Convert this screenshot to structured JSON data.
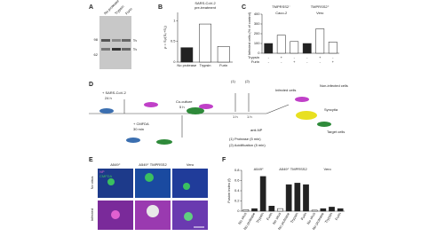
{
  "panels": [
    "A",
    "B",
    "C",
    "D",
    "E",
    "F"
  ],
  "gel": {
    "lanes": [
      "No protease",
      "Trypsin",
      "Furin"
    ],
    "markers": [
      "98",
      "62"
    ],
    "bands": [
      "S₀",
      "S₂"
    ]
  },
  "diagram": {
    "labels": [
      "+ SARS-CoV-2",
      "24 h",
      "+ CMFDA",
      "30 min",
      "Co-culture",
      "5 h",
      "(1)",
      "(2)",
      "1 h",
      "1 h",
      "Infected cells",
      "Non-infected cells",
      "Syncytia",
      "Target cells",
      "anti-NP",
      "(1) Protease (5 min)",
      "(2) Acidification (5 min)"
    ]
  },
  "micrographs": {
    "columns": [
      "A549⁺",
      "A549⁺ TMPRSS2",
      "Vero"
    ],
    "rows": [
      "No virus",
      "Infected"
    ],
    "legend": [
      "NP",
      "CMFDA"
    ]
  },
  "chart_data": [
    {
      "type": "bar",
      "title": "SARS-CoV-2",
      "subtitle": "pre-treatment",
      "ylabel": "ρ = S₂/(S₀+S₂)",
      "categories": [
        "No protease",
        "Trypsin",
        "Furin"
      ],
      "values": [
        0.35,
        0.92,
        0.38
      ],
      "colors": [
        "#222222",
        "#ffffff",
        "#ffffff"
      ],
      "ylim": [
        0,
        1.2
      ],
      "yticks": [
        0,
        0.5,
        1
      ]
    },
    {
      "type": "bar",
      "headers": [
        "TMPRSS2⁻",
        "TMPRSS2⁺"
      ],
      "ylabel": "Infected cells (% of control)",
      "groups": [
        "Caco-2",
        "Vero"
      ],
      "categories": [
        null,
        null,
        null,
        null,
        null,
        null
      ],
      "values": [
        100,
        185,
        120,
        100,
        250,
        115
      ],
      "colors": [
        "#222222",
        "#ffffff",
        "#ffffff",
        "#222222",
        "#ffffff",
        "#ffffff"
      ],
      "rows": [
        {
          "name": "Trypsin",
          "labels": [
            "-",
            "+",
            "-",
            "-",
            "+",
            "-"
          ]
        },
        {
          "name": "Furin",
          "labels": [
            "-",
            "-",
            "+",
            "-",
            "-",
            "+"
          ]
        }
      ],
      "ylim": [
        0,
        400
      ],
      "yticks": [
        0,
        100,
        200,
        300,
        400
      ]
    },
    {
      "type": "bar",
      "ylabel": "Fusion index (f)",
      "groups": [
        "A549⁺",
        "A549⁺ TMPRSS2",
        "Vero"
      ],
      "categories": [
        "No virus",
        "No protease",
        "Trypsin",
        "Furin",
        "No virus",
        "No protease",
        "Trypsin",
        "Furin",
        "No virus",
        "No protease",
        "Trypsin",
        "Furin"
      ],
      "values": [
        0.03,
        0.05,
        0.68,
        0.1,
        0.05,
        0.52,
        0.55,
        0.52,
        0.02,
        0.05,
        0.08,
        0.05
      ],
      "colors": [
        "#ffffff",
        "#222222",
        "#222222",
        "#222222",
        "#ffffff",
        "#222222",
        "#222222",
        "#222222",
        "#ffffff",
        "#222222",
        "#222222",
        "#222222"
      ],
      "ylim": [
        0,
        0.8
      ],
      "yticks": [
        0,
        0.2,
        0.4,
        0.6,
        0.8
      ]
    }
  ]
}
